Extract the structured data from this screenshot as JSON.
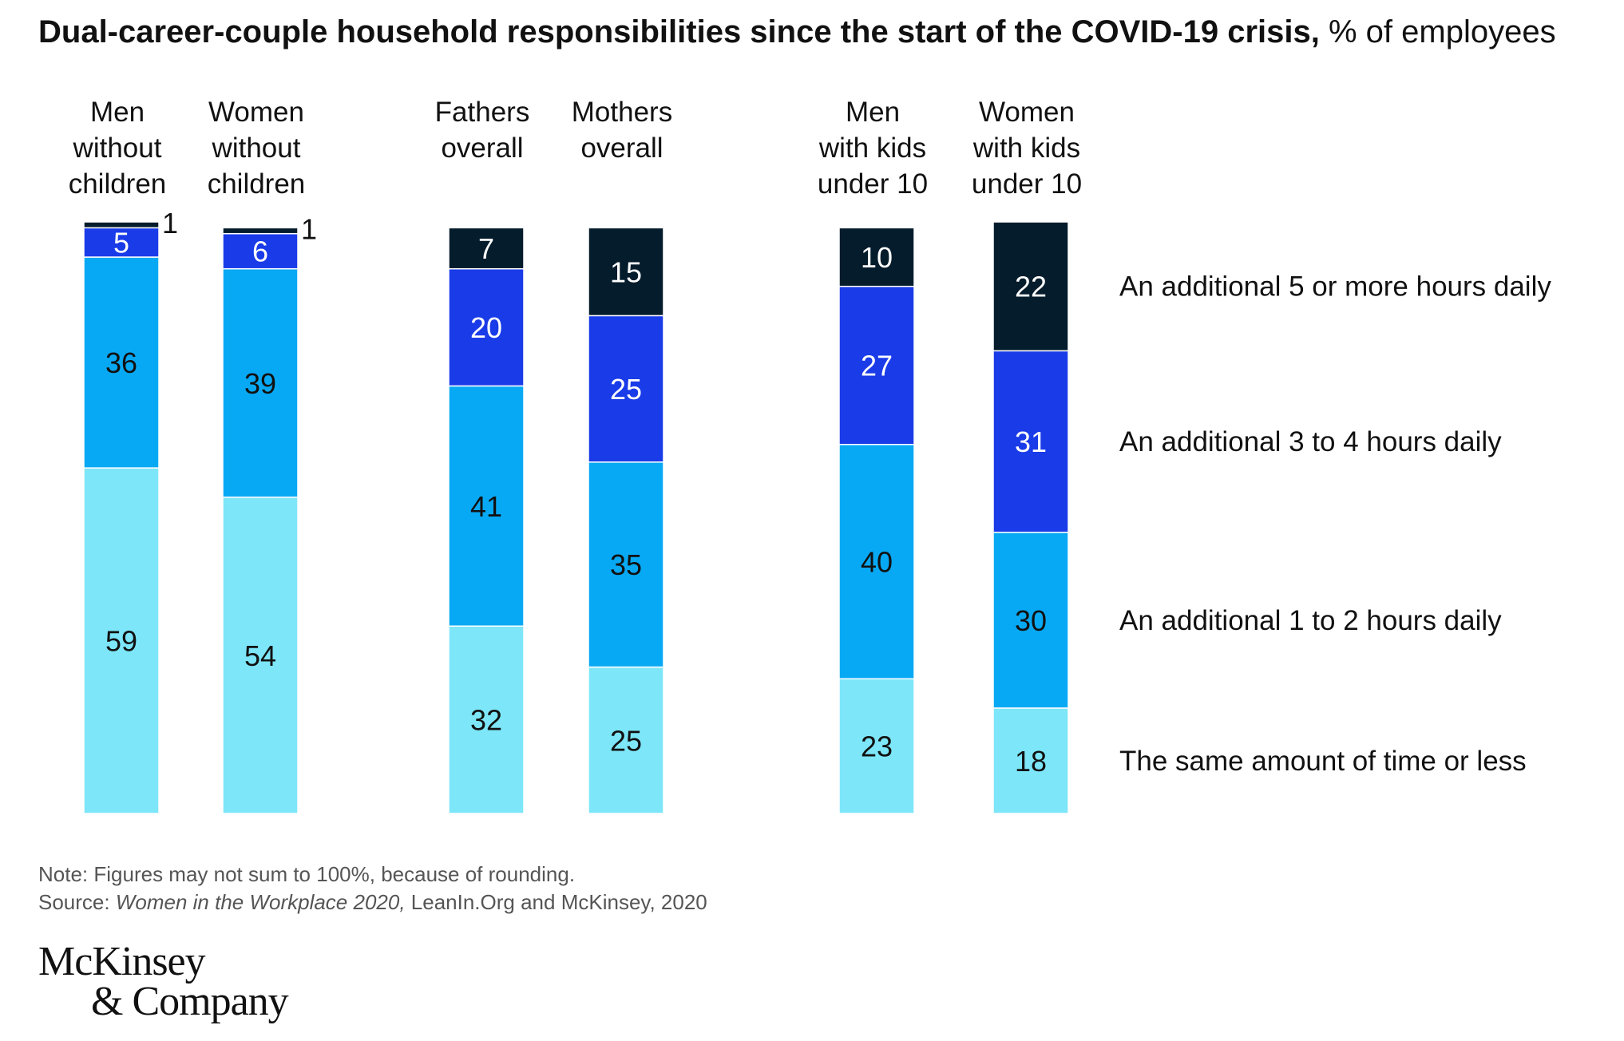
{
  "title": {
    "bold": "Dual-career-couple household responsibilities since the start of the COVID-19 crisis,",
    "unit": "% of employees"
  },
  "chart_data": {
    "type": "bar",
    "stacked": true,
    "categories": [
      [
        "Men",
        "without",
        "children"
      ],
      [
        "Women",
        "without",
        "children"
      ],
      [
        "Fathers",
        "overall"
      ],
      [
        "Mothers",
        "overall"
      ],
      [
        "Men",
        "with kids",
        "under 10"
      ],
      [
        "Women",
        "with kids",
        "under 10"
      ]
    ],
    "series": [
      {
        "name": "The same amount of time or less",
        "color": "#7de6f9",
        "values": [
          59,
          54,
          32,
          25,
          23,
          18
        ]
      },
      {
        "name": "An additional 1 to 2 hours daily",
        "color": "#08a9f4",
        "values": [
          36,
          39,
          41,
          35,
          40,
          30
        ]
      },
      {
        "name": "An additional 3 to 4 hours daily",
        "color": "#1a3be8",
        "values": [
          5,
          6,
          20,
          25,
          27,
          31
        ]
      },
      {
        "name": "An additional 5 or more hours daily",
        "color": "#051c2c",
        "values": [
          1,
          1,
          7,
          15,
          10,
          22
        ]
      }
    ],
    "label_colors": {
      "light": "#111111",
      "dark": "#ffffff"
    },
    "ylim": [
      0,
      101
    ]
  },
  "note": {
    "line1": "Note: Figures may not sum to 100%, because of rounding.",
    "source_prefix": "Source: ",
    "source_italic": "Women in the Workplace 2020,",
    "source_rest": " LeanIn.Org and McKinsey, 2020"
  },
  "logo": {
    "line1": "McKinsey",
    "line2": "& Company"
  }
}
